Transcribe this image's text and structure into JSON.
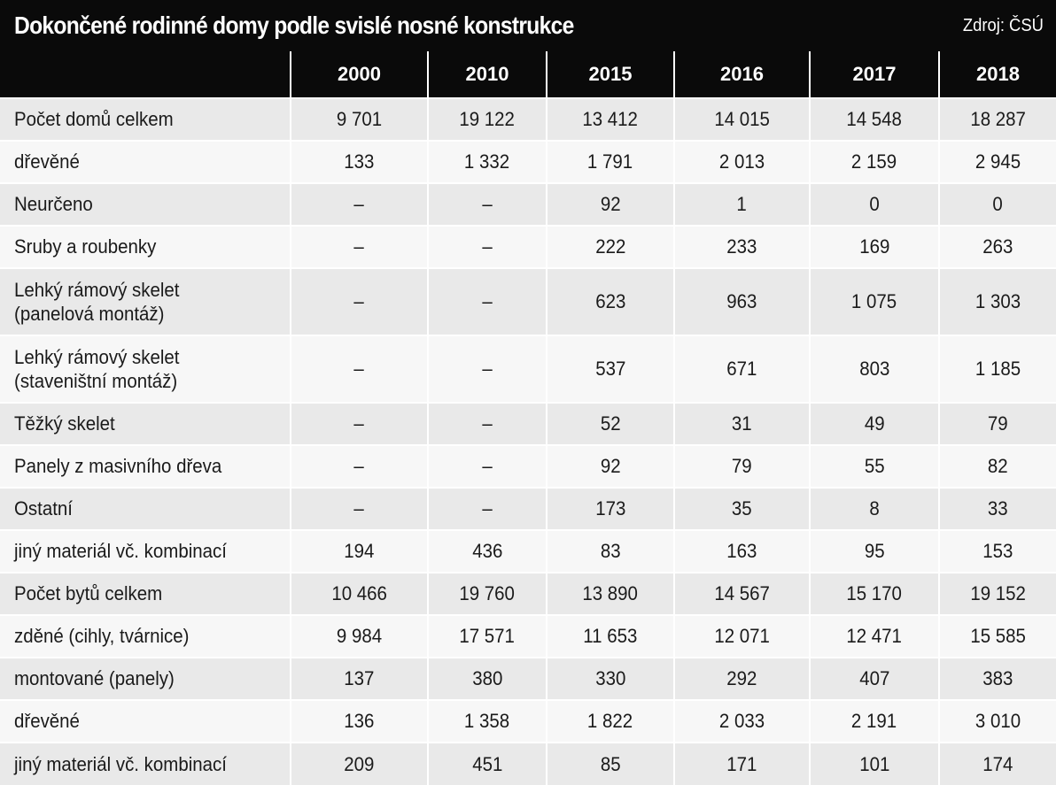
{
  "title": "Dokončené rodinné domy podle svislé nosné konstrukce",
  "source": "Zdroj: ČSÚ",
  "chart_data": {
    "type": "table",
    "columns": [
      "2000",
      "2010",
      "2015",
      "2016",
      "2017",
      "2018"
    ],
    "rows": [
      {
        "label": [
          "Počet domů celkem"
        ],
        "values": [
          "9 701",
          "19 122",
          "13 412",
          "14 015",
          "14 548",
          "18 287"
        ]
      },
      {
        "label": [
          "dřevěné"
        ],
        "values": [
          "133",
          "1 332",
          "1 791",
          "2 013",
          "2 159",
          "2 945"
        ]
      },
      {
        "label": [
          "Neurčeno"
        ],
        "values": [
          "–",
          "–",
          "92",
          "1",
          "0",
          "0"
        ]
      },
      {
        "label": [
          "Sruby a roubenky"
        ],
        "values": [
          "–",
          "–",
          "222",
          "233",
          "169",
          "263"
        ]
      },
      {
        "label": [
          "Lehký rámový skelet",
          "(panelová montáž)"
        ],
        "values": [
          "–",
          "–",
          "623",
          "963",
          "1 075",
          "1 303"
        ]
      },
      {
        "label": [
          "Lehký rámový skelet",
          "(staveništní montáž)"
        ],
        "values": [
          "–",
          "–",
          "537",
          "671",
          "803",
          "1 185"
        ]
      },
      {
        "label": [
          "Těžký skelet"
        ],
        "values": [
          "–",
          "–",
          "52",
          "31",
          "49",
          "79"
        ]
      },
      {
        "label": [
          "Panely z masivního dřeva"
        ],
        "values": [
          "–",
          "–",
          "92",
          "79",
          "55",
          "82"
        ]
      },
      {
        "label": [
          "Ostatní"
        ],
        "values": [
          "–",
          "–",
          "173",
          "35",
          "8",
          "33"
        ]
      },
      {
        "label": [
          "jiný materiál vč. kombinací"
        ],
        "values": [
          "194",
          "436",
          "83",
          "163",
          "95",
          "153"
        ]
      },
      {
        "label": [
          "Počet bytů celkem"
        ],
        "values": [
          "10 466",
          "19 760",
          "13 890",
          "14 567",
          "15 170",
          "19 152"
        ]
      },
      {
        "label": [
          "zděné (cihly, tvárnice)"
        ],
        "values": [
          "9 984",
          "17 571",
          "11 653",
          "12 071",
          "12 471",
          "15 585"
        ]
      },
      {
        "label": [
          "montované (panely)"
        ],
        "values": [
          "137",
          "380",
          "330",
          "292",
          "407",
          "383"
        ]
      },
      {
        "label": [
          "dřevěné"
        ],
        "values": [
          "136",
          "1 358",
          "1 822",
          "2 033",
          "2 191",
          "3 010"
        ]
      },
      {
        "label": [
          "jiný materiál vč. kombinací"
        ],
        "values": [
          "209",
          "451",
          "85",
          "171",
          "101",
          "174"
        ]
      }
    ]
  }
}
